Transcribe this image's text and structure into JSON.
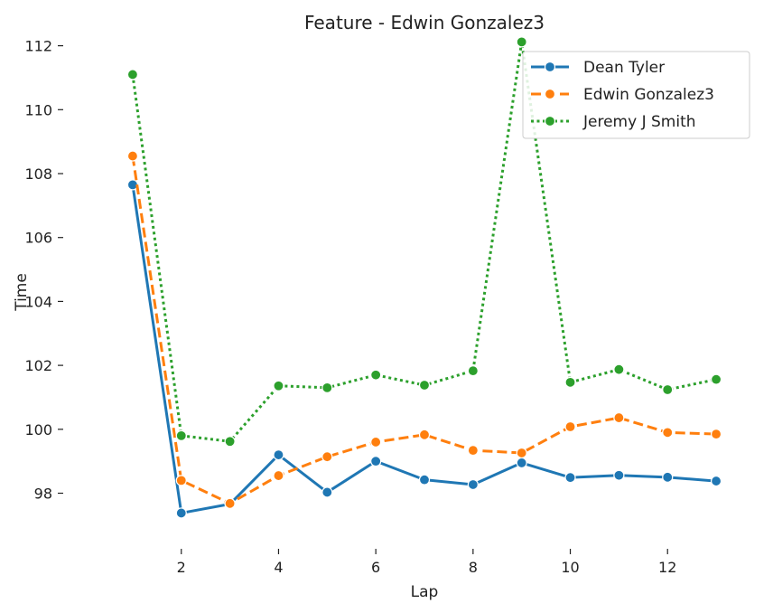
{
  "chart_data": {
    "type": "line",
    "title": "Feature - Edwin Gonzalez3",
    "xlabel": "Lap",
    "ylabel": "Time",
    "xlim": [
      0.5,
      13.5
    ],
    "ylim": [
      96.6,
      112.3
    ],
    "xticks": [
      2,
      4,
      6,
      8,
      10,
      12
    ],
    "yticks": [
      98,
      100,
      102,
      104,
      106,
      108,
      110,
      112
    ],
    "grid": false,
    "legend_position": "top-right",
    "x": [
      1,
      2,
      3,
      4,
      5,
      6,
      7,
      8,
      9,
      10,
      11,
      12,
      13
    ],
    "series": [
      {
        "name": "Dean Tyler",
        "color": "#1f77b4",
        "dash": "solid",
        "values": [
          107.65,
          97.38,
          97.66,
          99.2,
          98.03,
          99.0,
          98.42,
          98.27,
          98.95,
          98.49,
          98.56,
          98.5,
          98.38
        ]
      },
      {
        "name": "Edwin Gonzalez3",
        "color": "#ff7f0e",
        "dash": "dashed",
        "values": [
          108.55,
          98.4,
          97.68,
          98.55,
          99.14,
          99.6,
          99.83,
          99.34,
          99.26,
          100.08,
          100.36,
          99.9,
          99.85
        ]
      },
      {
        "name": "Jeremy J Smith",
        "color": "#2ca02c",
        "dash": "dotted",
        "values": [
          111.1,
          99.8,
          99.62,
          101.36,
          101.3,
          101.7,
          101.38,
          101.83,
          112.12,
          101.47,
          101.87,
          101.24,
          101.56
        ]
      }
    ]
  }
}
